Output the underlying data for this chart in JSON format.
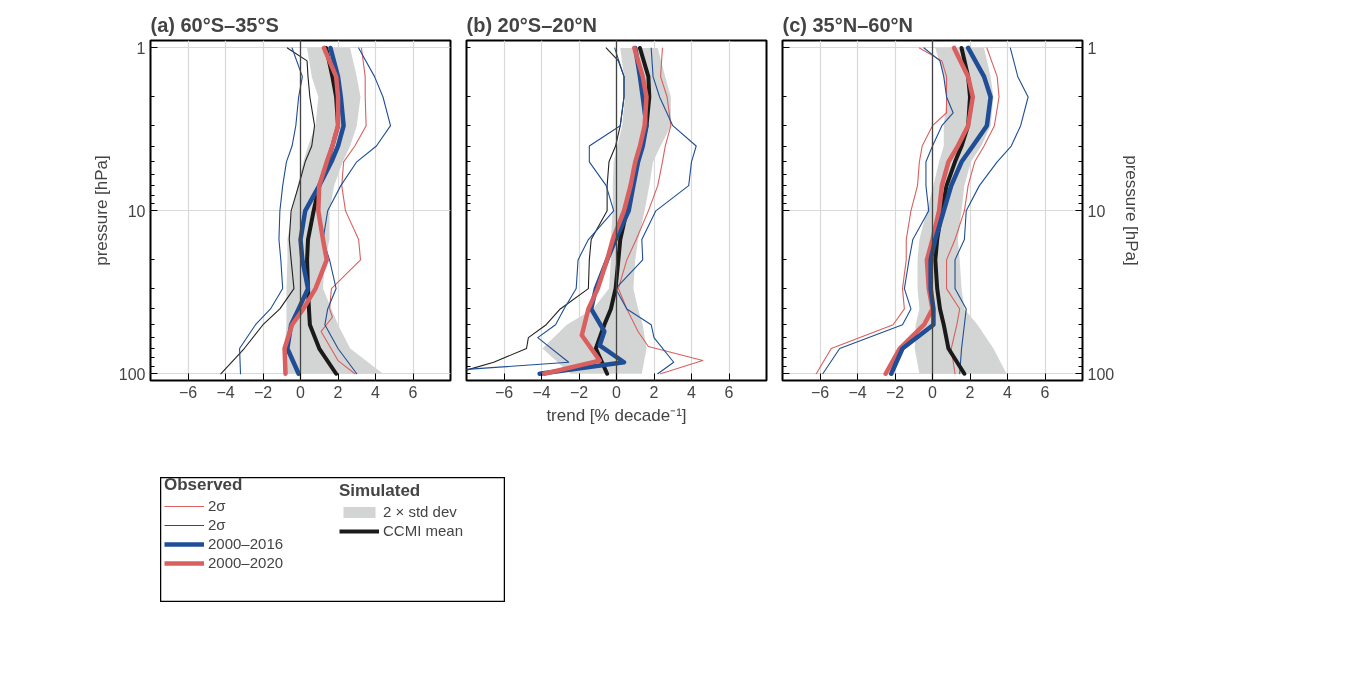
{
  "chart_data": [
    {
      "type": "line",
      "title": "(a) 60°S–35°S",
      "ylabel": "pressure [hPa]",
      "log": "y",
      "grid": true,
      "legend": "bottom",
      "legend_title": [
        "Observed",
        "Simulated"
      ],
      "xlim": [
        -8,
        8
      ],
      "xticks": [
        {
          "value": -6,
          "label": "−6"
        },
        {
          "value": -4,
          "label": "−4"
        },
        {
          "value": -2,
          "label": "−2"
        },
        0,
        2,
        4,
        6
      ],
      "ylim": [
        110,
        0.9
      ],
      "yticks": [
        1,
        {
          "value": 2,
          "label": null
        },
        {
          "value": 3,
          "label": null
        },
        {
          "value": 4,
          "label": null
        },
        {
          "value": 5,
          "label": null
        },
        {
          "value": 6,
          "label": null
        },
        {
          "value": 7,
          "label": null
        },
        {
          "value": 8,
          "label": null
        },
        {
          "value": 9,
          "label": null
        },
        10,
        {
          "value": 20,
          "label": null
        },
        {
          "value": 30,
          "label": null
        },
        {
          "value": 40,
          "label": null
        },
        {
          "value": 50,
          "label": null
        },
        {
          "value": 60,
          "label": null
        },
        {
          "value": 70,
          "label": null
        },
        {
          "value": 80,
          "label": null
        },
        {
          "value": 90,
          "label": null
        },
        100
      ],
      "ref_lines": [
        {
          "axis": "x",
          "value": 0,
          "color": "#444444"
        }
      ],
      "series": [
        {
          "type": "area",
          "name": "2 × std dev",
          "color": "#d3d4d4",
          "x": [
            0.35,
            0.6,
            0.95,
            0.8,
            0.4,
            0.15,
            -0.15,
            -0.45,
            -0.7,
            -0.7,
            -0.75,
            -0.75,
            -0.75,
            -0.85,
            -0.95,
            4.4,
            2.65,
            2.0,
            1.65,
            1.2,
            1.3,
            1.55,
            1.55,
            1.8,
            2.25,
            2.65,
            3.0,
            3.2,
            3.0,
            2.65
          ],
          "values": [
            1,
            1.5,
            2,
            3,
            4,
            5,
            7,
            10,
            15,
            20,
            30,
            40,
            50,
            70,
            100,
            100,
            70,
            50,
            40,
            30,
            20,
            15,
            10,
            7,
            5,
            4,
            3,
            2,
            1.5,
            1
          ]
        },
        {
          "color": "#222222",
          "x": [
            -0.7,
            0.35,
            0.4,
            0.5,
            0.75,
            0.6,
            0.25,
            -0.1,
            -0.5,
            -0.6,
            -0.5,
            -0.35,
            -1.1,
            -2.0,
            -3.0,
            -4.25
          ],
          "values": [
            1,
            1.2,
            1.5,
            2,
            3,
            4,
            5,
            7,
            10,
            15,
            20,
            30,
            40,
            50,
            70,
            100
          ]
        },
        {
          "name": "2σ",
          "color": "#d9605f",
          "x": [
            3.25,
            3.45,
            3.45,
            3.5,
            2.9,
            2.3,
            2.2,
            2.4,
            3.1,
            3.2,
            1.65,
            1.55,
            1.7,
            1.1,
            2.0,
            2.9
          ],
          "values": [
            1,
            1.5,
            2,
            3,
            4,
            5,
            7,
            10,
            15,
            20,
            30,
            40,
            45,
            55,
            83,
            100
          ]
        },
        {
          "name": "2σ",
          "color": "#1f4e96",
          "x": [
            3.1,
            3.95,
            4.4,
            4.8,
            4.05,
            3.0,
            2.15,
            1.45,
            1.2,
            1.55,
            1.9,
            1.45,
            1.3,
            2.0,
            3.0
          ],
          "values": [
            1,
            1.5,
            2,
            3,
            4,
            5,
            7,
            10,
            15,
            20,
            30,
            40,
            50,
            70,
            100
          ]
        },
        {
          "color": "#1f4e96",
          "x": [
            -0.45,
            0.1,
            -0.1,
            -0.25,
            -0.45,
            -0.75,
            -0.95,
            -1.1,
            -1.15,
            -1.05,
            -0.95,
            -1.6,
            -2.4,
            -3.25,
            -3.2
          ],
          "values": [
            1,
            1.5,
            2,
            3,
            4,
            5,
            7,
            10,
            15,
            20,
            30,
            40,
            50,
            70,
            100
          ]
        },
        {
          "name": "CCMI mean",
          "color": "#1a1a1a",
          "x": [
            1.37,
            1.7,
            1.9,
            2.0,
            1.7,
            1.45,
            1.0,
            0.7,
            0.4,
            0.35,
            0.4,
            0.45,
            0.5,
            1.0,
            1.9
          ],
          "values": [
            1,
            1.5,
            2,
            3,
            4,
            5,
            7,
            10,
            15,
            20,
            30,
            40,
            50,
            70,
            100
          ]
        },
        {
          "name": "2000–2016",
          "color": "#1f4e96",
          "x": [
            1.6,
            2.0,
            2.15,
            2.3,
            2.0,
            1.65,
            1.0,
            0.25,
            0.0,
            0.1,
            0.4,
            -0.1,
            -0.5,
            -0.7,
            -0.1
          ],
          "values": [
            1,
            1.5,
            2,
            3,
            4,
            5,
            7,
            10,
            15,
            20,
            30,
            40,
            50,
            70,
            100
          ]
        },
        {
          "name": "2000–2020",
          "color": "#d9605f",
          "x": [
            1.25,
            1.9,
            2.0,
            2.0,
            1.7,
            1.4,
            1.0,
            0.95,
            1.2,
            1.4,
            0.8,
            0.15,
            -0.45,
            -0.85,
            -0.8
          ],
          "values": [
            1,
            1.5,
            2,
            3,
            4,
            5,
            7,
            10,
            15,
            20,
            30,
            40,
            50,
            70,
            100
          ]
        }
      ]
    },
    {
      "type": "line",
      "title": "(b) 20°S–20°N",
      "xlabel": "trend [% decade⁻¹]",
      "log": "y",
      "grid": true,
      "tick_labels": "x",
      "xlim": [
        -8,
        8
      ],
      "xticks": [
        {
          "value": -6,
          "label": "−6"
        },
        {
          "value": -4,
          "label": "−4"
        },
        {
          "value": -2,
          "label": "−2"
        },
        0,
        2,
        4,
        6
      ],
      "ylim": [
        110,
        0.9
      ],
      "yticks": [
        {
          "value": 1,
          "label": null
        },
        {
          "value": 2,
          "label": null
        },
        {
          "value": 3,
          "label": null
        },
        {
          "value": 4,
          "label": null
        },
        {
          "value": 5,
          "label": null
        },
        {
          "value": 6,
          "label": null
        },
        {
          "value": 7,
          "label": null
        },
        {
          "value": 8,
          "label": null
        },
        {
          "value": 9,
          "label": null
        },
        {
          "value": 10,
          "label": null
        },
        {
          "value": 20,
          "label": null
        },
        {
          "value": 30,
          "label": null
        },
        {
          "value": 40,
          "label": null
        },
        {
          "value": 50,
          "label": null
        },
        {
          "value": 60,
          "label": null
        },
        {
          "value": 70,
          "label": null
        },
        {
          "value": 80,
          "label": null
        },
        {
          "value": 90,
          "label": null
        },
        {
          "value": 100,
          "label": null
        }
      ],
      "ref_lines": [
        {
          "axis": "x",
          "value": 0,
          "color": "#444444"
        }
      ],
      "series": [
        {
          "type": "area",
          "color": "#d3d4d4",
          "x": [
            0.2,
            0.4,
            0.45,
            0.3,
            0.05,
            -0.15,
            -0.2,
            -0.2,
            -0.3,
            -0.3,
            -0.4,
            -1.25,
            -2.65,
            -3.95,
            -2.45,
            1.35,
            1.6,
            1.4,
            1.15,
            0.9,
            1.0,
            1.15,
            1.5,
            1.75,
            1.95,
            2.35,
            2.9,
            2.9,
            2.6,
            2.2
          ],
          "values": [
            1,
            1.5,
            2,
            3,
            4,
            5,
            7,
            10,
            15,
            20,
            30,
            40,
            50,
            70,
            100,
            100,
            70,
            50,
            40,
            30,
            20,
            15,
            10,
            7,
            5,
            4,
            3,
            2,
            1.5,
            1
          ]
        },
        {
          "color": "#222222",
          "x": [
            -0.55,
            0.1,
            0.4,
            0.4,
            0.2,
            -0.05,
            -0.4,
            -0.5,
            -0.5,
            -1.35,
            -1.45,
            -1.5,
            -3.0,
            -3.75,
            -4.7,
            -4.8,
            -6.55,
            -8.0
          ],
          "values": [
            1,
            1.2,
            1.5,
            2,
            3,
            4,
            5,
            7,
            10,
            15,
            20,
            30,
            40,
            50,
            60,
            70,
            85,
            95
          ]
        },
        {
          "color": "#d9605f",
          "x": [
            2.45,
            2.35,
            2.7,
            2.9,
            2.6,
            2.45,
            2.2,
            1.7,
            1.05,
            0.55,
            0.1,
            0.55,
            1.15,
            1.7,
            4.6,
            2.35
          ],
          "values": [
            1,
            1.5,
            2,
            3,
            4,
            5,
            7,
            10,
            15,
            20,
            30,
            40,
            55,
            68,
            83,
            100
          ]
        },
        {
          "color": "#1f4e96",
          "x": [
            1.85,
            1.95,
            2.3,
            3.0,
            4.25,
            4.0,
            3.85,
            2.1,
            1.35,
            1.4,
            -0.05,
            0.55,
            1.85,
            2.0,
            3.05,
            2.2
          ],
          "values": [
            1,
            1.5,
            2,
            3,
            4,
            5,
            7,
            10,
            15,
            20,
            30,
            40,
            50,
            60,
            85,
            100
          ]
        },
        {
          "color": "#1f4e96",
          "x": [
            -0.1,
            0.4,
            0.4,
            0.2,
            -1.45,
            -1.45,
            -0.55,
            -0.15,
            -1.5,
            -2.05,
            -2.15,
            -2.8,
            -3.25,
            -4.2,
            -2.55,
            -8.0
          ],
          "values": [
            1,
            1.5,
            2,
            3,
            4,
            5,
            7,
            10,
            15,
            20,
            30,
            40,
            50,
            60,
            85,
            94
          ]
        },
        {
          "color": "#1a1a1a",
          "x": [
            1.25,
            1.7,
            1.75,
            1.6,
            1.35,
            1.05,
            0.8,
            0.55,
            0.2,
            0.1,
            -0.05,
            -0.3,
            -0.65,
            -1.1,
            -0.5
          ],
          "values": [
            1,
            1.5,
            2,
            3,
            4,
            5,
            7,
            10,
            15,
            20,
            30,
            40,
            50,
            70,
            100
          ]
        },
        {
          "color": "#1f4e96",
          "x": [
            1.0,
            1.25,
            1.4,
            1.6,
            1.4,
            1.15,
            0.9,
            0.65,
            -0.05,
            -0.5,
            -1.1,
            -1.35,
            -0.65,
            -0.9,
            0.4,
            -4.1
          ],
          "values": [
            1,
            1.5,
            2,
            3,
            4,
            5,
            7,
            10,
            15,
            20,
            30,
            40,
            55,
            67,
            85,
            100
          ]
        },
        {
          "color": "#d9605f",
          "x": [
            0.95,
            1.4,
            1.6,
            1.5,
            1.25,
            1.0,
            0.75,
            0.4,
            -0.2,
            -0.5,
            -1.0,
            -1.5,
            -1.85,
            -0.9,
            -3.85
          ],
          "values": [
            1,
            1.5,
            2,
            3,
            4,
            5,
            7,
            10,
            15,
            20,
            30,
            40,
            58,
            83,
            100
          ]
        }
      ]
    },
    {
      "type": "line",
      "title": "(c) 35°N–60°N",
      "y2label": "pressure [hPa]",
      "log": "y2",
      "grid": true,
      "xlim": [
        -8,
        8
      ],
      "xticks": [
        {
          "value": -6,
          "label": "−6"
        },
        {
          "value": -4,
          "label": "−4"
        },
        {
          "value": -2,
          "label": "−2"
        },
        0,
        2,
        4,
        6
      ],
      "y2lim": [
        110,
        0.9
      ],
      "y2ticks": [
        1,
        {
          "value": 2,
          "label": null
        },
        {
          "value": 3,
          "label": null
        },
        {
          "value": 4,
          "label": null
        },
        {
          "value": 5,
          "label": null
        },
        {
          "value": 6,
          "label": null
        },
        {
          "value": 7,
          "label": null
        },
        {
          "value": 8,
          "label": null
        },
        {
          "value": 9,
          "label": null
        },
        10,
        {
          "value": 20,
          "label": null
        },
        {
          "value": 30,
          "label": null
        },
        {
          "value": 40,
          "label": null
        },
        {
          "value": 50,
          "label": null
        },
        {
          "value": 60,
          "label": null
        },
        {
          "value": 70,
          "label": null
        },
        {
          "value": 80,
          "label": null
        },
        {
          "value": 90,
          "label": null
        },
        100
      ],
      "ref_lines": [
        {
          "axis": "x",
          "value": 0,
          "color": "#444444"
        }
      ],
      "series": [
        {
          "type": "area",
          "axis": "y2",
          "color": "#d3d4d4",
          "x": [
            0.15,
            0.6,
            0.75,
            0.6,
            0.6,
            0.35,
            0.05,
            -0.3,
            -0.7,
            -0.8,
            -0.8,
            -0.7,
            -0.9,
            -0.95,
            -0.7,
            3.95,
            3.25,
            2.4,
            1.7,
            1.55,
            1.45,
            1.35,
            1.55,
            1.7,
            2.05,
            2.6,
            3.1,
            3.25,
            3.1,
            2.75
          ],
          "values": [
            1,
            1.5,
            2,
            3,
            4,
            5,
            7,
            10,
            15,
            20,
            30,
            40,
            50,
            70,
            100,
            100,
            70,
            50,
            40,
            30,
            20,
            15,
            10,
            7,
            5,
            4,
            3,
            2,
            1.5,
            1
          ]
        },
        {
          "axis": "y2",
          "color": "#d9605f",
          "x": [
            -0.7,
            0.5,
            0.75,
            0.75,
            0.75,
            0.0,
            -0.55,
            -0.7,
            -0.8,
            -1.15,
            -1.4,
            -1.4,
            -1.6,
            -1.5,
            -2.1,
            -5.4,
            -6.2
          ],
          "values": [
            1,
            1.2,
            1.5,
            2,
            2.5,
            3,
            4,
            5,
            7,
            10,
            15,
            20,
            30,
            40,
            50,
            70,
            100
          ]
        },
        {
          "axis": "y2",
          "color": "#1f4e96",
          "x": [
            -0.45,
            0.4,
            0.6,
            0.75,
            1.1,
            0.5,
            0.0,
            -0.35,
            -0.35,
            -0.2,
            -1.05,
            -1.25,
            -1.5,
            -1.15,
            -1.6,
            -4.95,
            -5.85
          ],
          "values": [
            1,
            1.2,
            1.5,
            2,
            2.5,
            3,
            4,
            5,
            7,
            10,
            15,
            20,
            30,
            40,
            50,
            70,
            100
          ]
        },
        {
          "axis": "y2",
          "color": "#d9605f",
          "x": [
            2.9,
            3.45,
            3.55,
            3.3,
            2.75,
            2.25,
            1.9,
            1.7,
            1.2,
            0.75,
            0.75,
            1.45,
            1.3,
            1.0,
            1.2
          ],
          "values": [
            1,
            1.5,
            2,
            3,
            4,
            5,
            7,
            10,
            15,
            20,
            30,
            40,
            50,
            70,
            100
          ]
        },
        {
          "axis": "y2",
          "color": "#1f4e96",
          "x": [
            4.15,
            4.55,
            5.1,
            4.7,
            4.2,
            3.45,
            2.5,
            1.8,
            1.7,
            1.2,
            1.2,
            1.8,
            1.7,
            1.55,
            1.45
          ],
          "values": [
            1,
            1.5,
            2,
            3,
            4,
            5,
            7,
            10,
            15,
            20,
            30,
            40,
            50,
            70,
            100
          ]
        },
        {
          "axis": "y2",
          "color": "#1a1a1a",
          "x": [
            1.55,
            1.9,
            2.0,
            1.9,
            1.55,
            1.2,
            0.75,
            0.5,
            0.25,
            0.15,
            0.25,
            0.4,
            0.6,
            0.85,
            1.7
          ],
          "values": [
            1,
            1.5,
            2,
            3,
            4,
            5,
            7,
            10,
            15,
            20,
            30,
            40,
            50,
            70,
            100
          ]
        },
        {
          "axis": "y2",
          "color": "#d9605f",
          "x": [
            1.15,
            1.9,
            2.15,
            1.9,
            1.35,
            0.85,
            0.5,
            0.35,
            0.0,
            -0.3,
            -0.2,
            0.0,
            -0.45,
            -1.75,
            -2.5
          ],
          "values": [
            1,
            1.5,
            2,
            3,
            4,
            5,
            7,
            10,
            15,
            20,
            30,
            40,
            50,
            70,
            100
          ]
        },
        {
          "axis": "y2",
          "color": "#1f4e96",
          "x": [
            1.9,
            2.75,
            3.1,
            2.9,
            2.15,
            1.55,
            1.0,
            0.6,
            0.15,
            -0.1,
            -0.1,
            0.05,
            0.05,
            -1.6,
            -2.2
          ],
          "values": [
            1,
            1.5,
            2,
            3,
            4,
            5,
            7,
            10,
            15,
            20,
            30,
            40,
            50,
            70,
            100
          ]
        }
      ]
    }
  ]
}
